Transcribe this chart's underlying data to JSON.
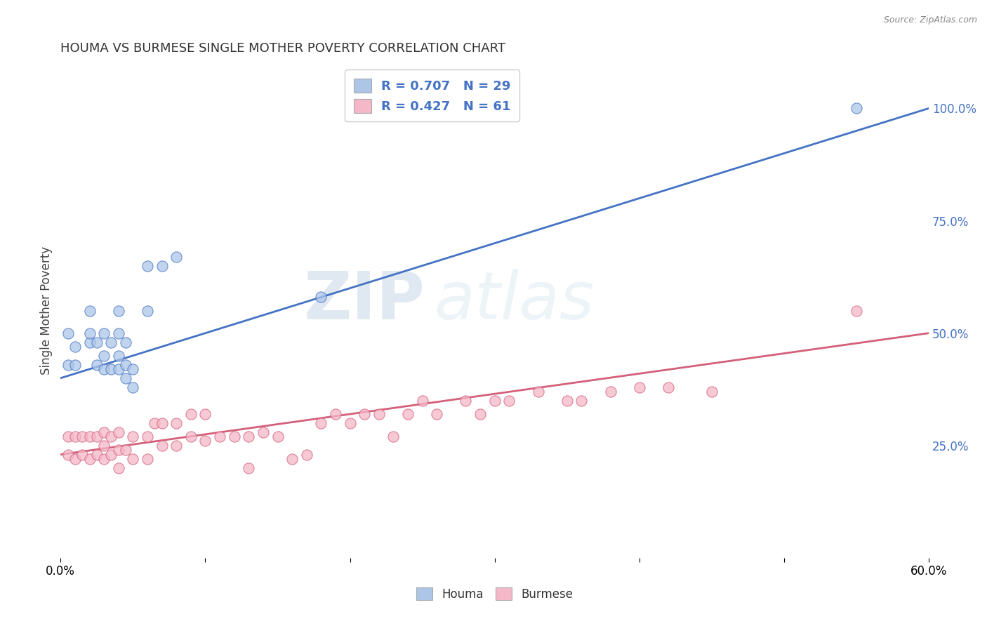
{
  "title": "HOUMA VS BURMESE SINGLE MOTHER POVERTY CORRELATION CHART",
  "source": "Source: ZipAtlas.com",
  "ylabel": "Single Mother Poverty",
  "xmin": 0.0,
  "xmax": 0.6,
  "ymin": 0.0,
  "ymax": 1.1,
  "yticks": [
    0.25,
    0.5,
    0.75,
    1.0
  ],
  "ytick_labels": [
    "25.0%",
    "50.0%",
    "75.0%",
    "100.0%"
  ],
  "xticks": [
    0.0,
    0.1,
    0.2,
    0.3,
    0.4,
    0.5,
    0.6
  ],
  "xtick_labels": [
    "0.0%",
    "",
    "",
    "",
    "",
    "",
    "60.0%"
  ],
  "legend_r1": "R = 0.707   N = 29",
  "legend_r2": "R = 0.427   N = 61",
  "houma_color": "#adc6e8",
  "burmese_color": "#f5b8c8",
  "houma_line_color": "#4472c4",
  "burmese_line_color": "#d45f7a",
  "watermark_zip": "ZIP",
  "watermark_atlas": "atlas",
  "houma_scatter_x": [
    0.005,
    0.005,
    0.01,
    0.01,
    0.02,
    0.02,
    0.02,
    0.025,
    0.025,
    0.03,
    0.03,
    0.03,
    0.035,
    0.035,
    0.04,
    0.04,
    0.04,
    0.04,
    0.045,
    0.045,
    0.045,
    0.05,
    0.05,
    0.06,
    0.06,
    0.07,
    0.08,
    0.18,
    0.55
  ],
  "houma_scatter_y": [
    0.43,
    0.5,
    0.43,
    0.47,
    0.48,
    0.5,
    0.55,
    0.43,
    0.48,
    0.42,
    0.45,
    0.5,
    0.42,
    0.48,
    0.42,
    0.45,
    0.5,
    0.55,
    0.4,
    0.43,
    0.48,
    0.38,
    0.42,
    0.55,
    0.65,
    0.65,
    0.67,
    0.58,
    1.0
  ],
  "burmese_scatter_x": [
    0.005,
    0.005,
    0.01,
    0.01,
    0.015,
    0.015,
    0.02,
    0.02,
    0.025,
    0.025,
    0.03,
    0.03,
    0.03,
    0.035,
    0.035,
    0.04,
    0.04,
    0.04,
    0.045,
    0.05,
    0.05,
    0.06,
    0.06,
    0.065,
    0.07,
    0.07,
    0.08,
    0.08,
    0.09,
    0.09,
    0.1,
    0.1,
    0.11,
    0.12,
    0.13,
    0.13,
    0.14,
    0.15,
    0.16,
    0.17,
    0.18,
    0.19,
    0.2,
    0.21,
    0.22,
    0.23,
    0.24,
    0.25,
    0.26,
    0.28,
    0.29,
    0.3,
    0.31,
    0.33,
    0.35,
    0.36,
    0.38,
    0.4,
    0.42,
    0.45,
    0.55
  ],
  "burmese_scatter_y": [
    0.23,
    0.27,
    0.22,
    0.27,
    0.23,
    0.27,
    0.22,
    0.27,
    0.23,
    0.27,
    0.22,
    0.25,
    0.28,
    0.23,
    0.27,
    0.2,
    0.24,
    0.28,
    0.24,
    0.22,
    0.27,
    0.22,
    0.27,
    0.3,
    0.25,
    0.3,
    0.25,
    0.3,
    0.27,
    0.32,
    0.26,
    0.32,
    0.27,
    0.27,
    0.2,
    0.27,
    0.28,
    0.27,
    0.22,
    0.23,
    0.3,
    0.32,
    0.3,
    0.32,
    0.32,
    0.27,
    0.32,
    0.35,
    0.32,
    0.35,
    0.32,
    0.35,
    0.35,
    0.37,
    0.35,
    0.35,
    0.37,
    0.38,
    0.38,
    0.37,
    0.55
  ],
  "houma_line_x0": 0.0,
  "houma_line_y0": 0.4,
  "houma_line_x1": 0.6,
  "houma_line_y1": 1.0,
  "burmese_line_x0": 0.0,
  "burmese_line_y0": 0.23,
  "burmese_line_x1": 0.6,
  "burmese_line_y1": 0.5
}
